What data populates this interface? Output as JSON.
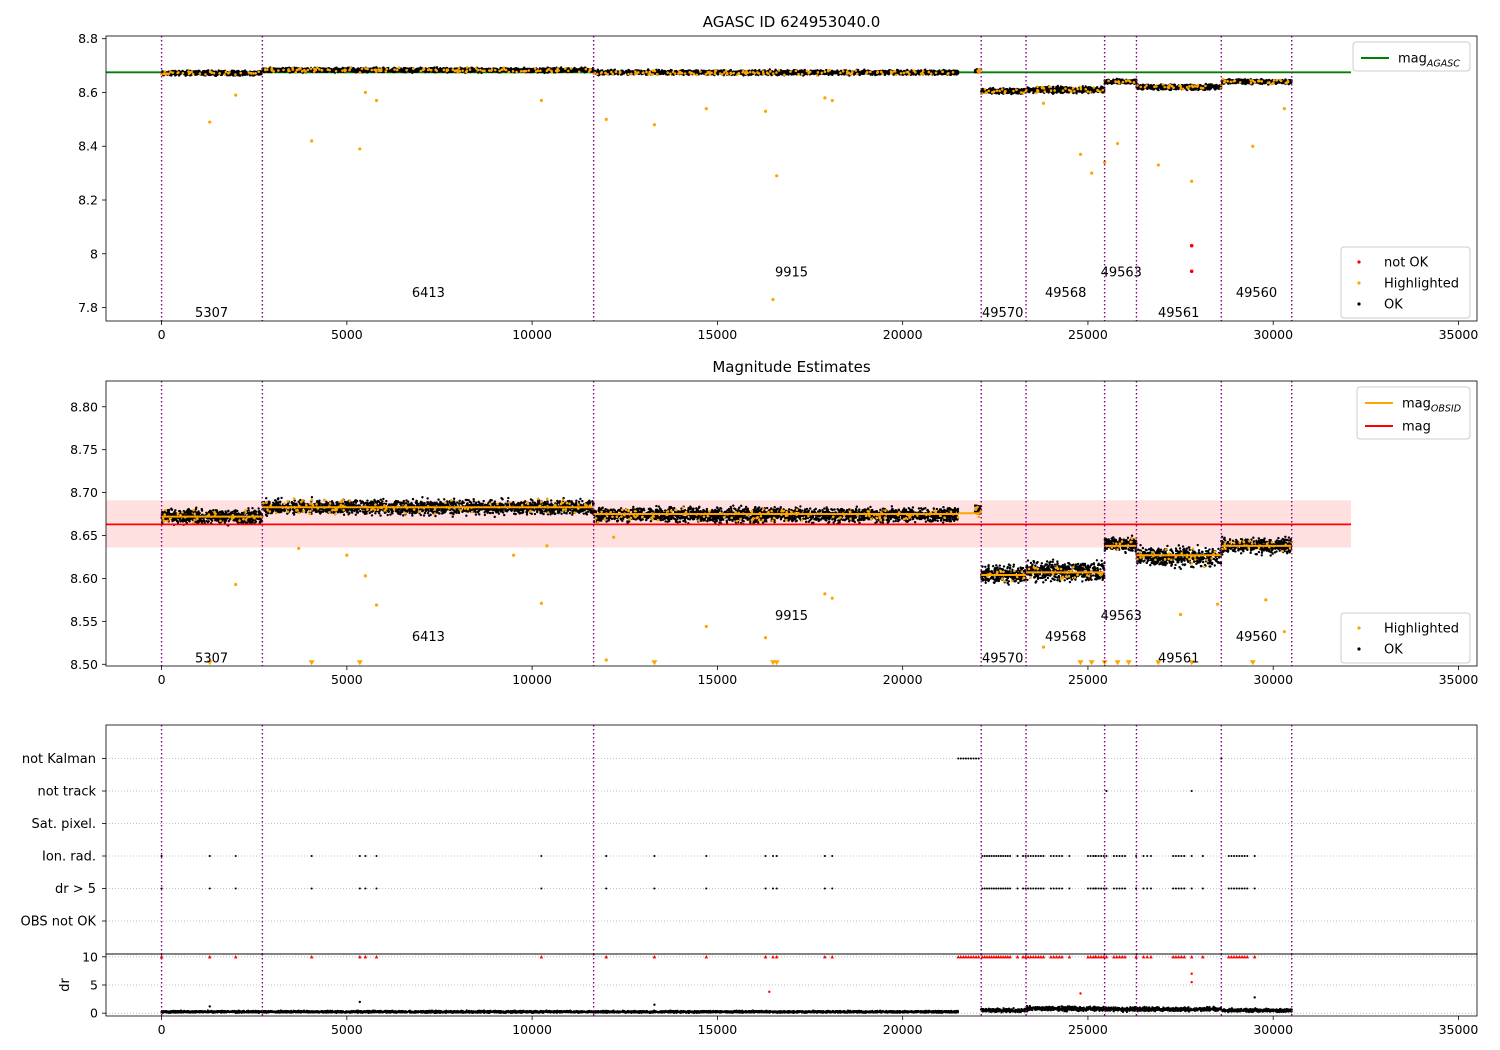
{
  "chart_data": [
    {
      "type": "scatter",
      "title": "AGASC ID 624953040.0",
      "xlim": [
        -1500,
        35500
      ],
      "ylim": [
        7.75,
        8.81
      ],
      "xticks": [
        0,
        5000,
        10000,
        15000,
        20000,
        25000,
        30000,
        35000
      ],
      "yticks": [
        7.8,
        8.0,
        8.2,
        8.4,
        8.6,
        8.8
      ],
      "grid": false,
      "obs_boundaries": [
        0,
        2720,
        11660,
        22120,
        23330,
        25450,
        26310,
        28600,
        30500
      ],
      "obsids": [
        {
          "label": "5307",
          "x": 1350,
          "y": 7.78
        },
        {
          "label": "6413",
          "x": 7200,
          "y": 7.855
        },
        {
          "label": "9915",
          "x": 17000,
          "y": 7.93
        },
        {
          "label": "49570",
          "x": 22700,
          "y": 7.78
        },
        {
          "label": "49568",
          "x": 24400,
          "y": 7.855
        },
        {
          "label": "49563",
          "x": 25900,
          "y": 7.93
        },
        {
          "label": "49561",
          "x": 27450,
          "y": 7.78
        },
        {
          "label": "49560",
          "x": 29550,
          "y": 7.855
        }
      ],
      "series": [
        {
          "name": "not OK",
          "color": "#ff0000",
          "points": [
            [
              27800,
              8.03
            ],
            [
              27800,
              7.935
            ]
          ]
        },
        {
          "name": "Highlighted",
          "color": "#ffa500",
          "points": [
            [
              1300,
              8.49
            ],
            [
              2000,
              8.59
            ],
            [
              4050,
              8.42
            ],
            [
              5350,
              8.39
            ],
            [
              5500,
              8.6
            ],
            [
              5800,
              8.57
            ],
            [
              10250,
              8.57
            ],
            [
              12000,
              8.5
            ],
            [
              13300,
              8.48
            ],
            [
              14700,
              8.54
            ],
            [
              16300,
              8.53
            ],
            [
              16500,
              7.83
            ],
            [
              16600,
              8.29
            ],
            [
              17900,
              8.58
            ],
            [
              18100,
              8.57
            ],
            [
              23800,
              8.56
            ],
            [
              24800,
              8.37
            ],
            [
              25100,
              8.3
            ],
            [
              25450,
              8.34
            ],
            [
              25800,
              8.41
            ],
            [
              26900,
              8.33
            ],
            [
              27800,
              8.27
            ],
            [
              29450,
              8.4
            ],
            [
              30300,
              8.54
            ]
          ]
        },
        {
          "name": "OK",
          "color": "#000000",
          "segments": [
            {
              "x0": 0,
              "x1": 2720,
              "y": 8.672,
              "spread": 0.012
            },
            {
              "x0": 2720,
              "x1": 11660,
              "y": 8.683,
              "spread": 0.012
            },
            {
              "x0": 11660,
              "x1": 21500,
              "y": 8.674,
              "spread": 0.012
            },
            {
              "x0": 21950,
              "x1": 22120,
              "y": 8.68,
              "spread": 0.01
            },
            {
              "x0": 22120,
              "x1": 23330,
              "y": 8.605,
              "spread": 0.014
            },
            {
              "x0": 23330,
              "x1": 25450,
              "y": 8.61,
              "spread": 0.016
            },
            {
              "x0": 25450,
              "x1": 26310,
              "y": 8.64,
              "spread": 0.012
            },
            {
              "x0": 26310,
              "x1": 28600,
              "y": 8.62,
              "spread": 0.014
            },
            {
              "x0": 28600,
              "x1": 30500,
              "y": 8.64,
              "spread": 0.012
            }
          ]
        },
        {
          "name": "mag_AGASC",
          "color": "#008000",
          "line": {
            "x": [
              -1500,
              32100
            ],
            "y": 8.675
          }
        }
      ],
      "legend_lines": [
        {
          "label": "mag",
          "sub": "AGASC",
          "color": "#008000"
        }
      ],
      "legend_markers": [
        {
          "label": "not OK",
          "color": "#ff0000"
        },
        {
          "label": "Highlighted",
          "color": "#ffa500"
        },
        {
          "label": "OK",
          "color": "#000000"
        }
      ]
    },
    {
      "type": "scatter",
      "title": "Magnitude Estimates",
      "xlim": [
        -1500,
        35500
      ],
      "ylim": [
        8.498,
        8.83
      ],
      "xticks": [
        0,
        5000,
        10000,
        15000,
        20000,
        25000,
        30000,
        35000
      ],
      "yticks": [
        8.5,
        8.55,
        8.6,
        8.65,
        8.7,
        8.75,
        8.8
      ],
      "ytick_labels": [
        "8.50",
        "8.55",
        "8.60",
        "8.65",
        "8.70",
        "8.75",
        "8.80"
      ],
      "grid": false,
      "obs_boundaries": [
        0,
        2720,
        11660,
        22120,
        23330,
        25450,
        26310,
        28600,
        30500
      ],
      "obsids": [
        {
          "label": "5307",
          "x": 1350,
          "y": 8.507
        },
        {
          "label": "6413",
          "x": 7200,
          "y": 8.532
        },
        {
          "label": "9915",
          "x": 17000,
          "y": 8.556
        },
        {
          "label": "49570",
          "x": 22700,
          "y": 8.507
        },
        {
          "label": "49568",
          "x": 24400,
          "y": 8.532
        },
        {
          "label": "49563",
          "x": 25900,
          "y": 8.556
        },
        {
          "label": "49561",
          "x": 27450,
          "y": 8.507
        },
        {
          "label": "49560",
          "x": 29550,
          "y": 8.532
        }
      ],
      "mag": 8.663,
      "mag_band": [
        8.636,
        8.691
      ],
      "mag_xrange": [
        -1500,
        32100
      ],
      "obs_mags": [
        {
          "x0": 0,
          "x1": 2720,
          "y": 8.672
        },
        {
          "x0": 2720,
          "x1": 11660,
          "y": 8.683
        },
        {
          "x0": 11660,
          "x1": 21500,
          "y": 8.675
        },
        {
          "x0": 21500,
          "x1": 22120,
          "y": 8.676
        },
        {
          "x0": 22120,
          "x1": 23330,
          "y": 8.604
        },
        {
          "x0": 23330,
          "x1": 25450,
          "y": 8.607
        },
        {
          "x0": 25450,
          "x1": 26310,
          "y": 8.638
        },
        {
          "x0": 26310,
          "x1": 28600,
          "y": 8.627
        },
        {
          "x0": 28600,
          "x1": 30500,
          "y": 8.638
        }
      ],
      "ok_segments": [
        {
          "x0": 0,
          "x1": 2720,
          "y": 8.672,
          "spread": 0.012
        },
        {
          "x0": 2720,
          "x1": 11660,
          "y": 8.683,
          "spread": 0.012
        },
        {
          "x0": 11660,
          "x1": 21500,
          "y": 8.674,
          "spread": 0.012
        },
        {
          "x0": 21950,
          "x1": 22120,
          "y": 8.68,
          "spread": 0.01
        },
        {
          "x0": 22120,
          "x1": 23330,
          "y": 8.605,
          "spread": 0.014
        },
        {
          "x0": 23330,
          "x1": 25450,
          "y": 8.608,
          "spread": 0.016
        },
        {
          "x0": 25450,
          "x1": 26310,
          "y": 8.64,
          "spread": 0.012
        },
        {
          "x0": 26310,
          "x1": 28600,
          "y": 8.625,
          "spread": 0.016
        },
        {
          "x0": 28600,
          "x1": 30500,
          "y": 8.638,
          "spread": 0.012
        }
      ],
      "highlighted": [
        [
          1300,
          8.5
        ],
        [
          2000,
          8.593
        ],
        [
          3700,
          8.635
        ],
        [
          4050,
          8.5
        ],
        [
          5000,
          8.627
        ],
        [
          5350,
          8.5
        ],
        [
          5500,
          8.603
        ],
        [
          5800,
          8.569
        ],
        [
          9500,
          8.627
        ],
        [
          10250,
          8.571
        ],
        [
          10400,
          8.638
        ],
        [
          12000,
          8.505
        ],
        [
          12200,
          8.648
        ],
        [
          13300,
          8.5
        ],
        [
          14700,
          8.544
        ],
        [
          16300,
          8.531
        ],
        [
          16500,
          8.5
        ],
        [
          16600,
          8.5
        ],
        [
          17900,
          8.582
        ],
        [
          18100,
          8.577
        ],
        [
          23800,
          8.52
        ],
        [
          24800,
          8.5
        ],
        [
          25100,
          8.5
        ],
        [
          25450,
          8.5
        ],
        [
          25800,
          8.5
        ],
        [
          26100,
          8.5
        ],
        [
          26900,
          8.5
        ],
        [
          27500,
          8.558
        ],
        [
          27800,
          8.5
        ],
        [
          29450,
          8.5
        ],
        [
          30300,
          8.538
        ],
        [
          29800,
          8.575
        ],
        [
          28500,
          8.57
        ]
      ],
      "legend_lines": [
        {
          "label": "mag",
          "sub": "OBSID",
          "color": "#ffa500"
        },
        {
          "label": "mag",
          "sub": "",
          "color": "#ff0000"
        }
      ],
      "legend_markers": [
        {
          "label": "Highlighted",
          "color": "#ffa500"
        },
        {
          "label": "OK",
          "color": "#000000"
        }
      ]
    },
    {
      "type": "scatter",
      "title": "",
      "xlim": [
        -1500,
        35500
      ],
      "flag_categories": [
        "not Kalman",
        "not track",
        "Sat. pixel.",
        "Ion. rad.",
        "dr > 5",
        "OBS not OK"
      ],
      "flag_points": {
        "not Kalman": {
          "ranges": [
            [
              21500,
              22050
            ]
          ],
          "x": [
            28600
          ]
        },
        "not track": {
          "ranges": [],
          "x": [
            25500,
            27800
          ]
        },
        "Sat. pixel.": {
          "ranges": [],
          "x": []
        },
        "Ion. rad.": {
          "ranges": [
            [
              22150,
              22900
            ],
            [
              23250,
              23800
            ],
            [
              24000,
              24300
            ],
            [
              25000,
              25500
            ],
            [
              25700,
              26000
            ],
            [
              26500,
              26700
            ],
            [
              27300,
              27600
            ],
            [
              28800,
              29300
            ]
          ],
          "x": [
            0,
            1300,
            2000,
            4050,
            5350,
            5500,
            5800,
            10250,
            12000,
            13300,
            14700,
            16300,
            16500,
            16600,
            17900,
            18100,
            23100,
            24500,
            25200,
            26300,
            27800,
            28100,
            29500
          ]
        },
        "dr > 5": {
          "ranges": [
            [
              22150,
              22900
            ],
            [
              23250,
              23800
            ],
            [
              24000,
              24300
            ],
            [
              25000,
              25500
            ],
            [
              25700,
              26000
            ],
            [
              26500,
              26700
            ],
            [
              27300,
              27600
            ],
            [
              28800,
              29300
            ]
          ],
          "x": [
            0,
            1300,
            2000,
            4050,
            5350,
            5500,
            5800,
            10250,
            12000,
            13300,
            14700,
            16300,
            16500,
            16600,
            17900,
            18100,
            23100,
            24500,
            25200,
            26300,
            27800,
            28100,
            29500
          ]
        },
        "OBS not OK": {
          "ranges": [],
          "x": []
        }
      },
      "obs_boundaries": [
        0,
        2720,
        11660,
        22120,
        23330,
        25450,
        26310,
        28600,
        30500
      ],
      "grid": "horizontal"
    },
    {
      "type": "scatter",
      "title": "",
      "ylabel": "dr",
      "xlim": [
        -1500,
        35500
      ],
      "ylim": [
        -0.5,
        10.5
      ],
      "xticks": [
        0,
        5000,
        10000,
        15000,
        20000,
        25000,
        30000,
        35000
      ],
      "yticks": [
        0,
        5,
        10
      ],
      "grid": "horizontal",
      "obs_boundaries": [
        0,
        2720,
        11660,
        22120,
        23330,
        25450,
        26310,
        28600,
        30500
      ],
      "clipped_points": {
        "color": "#ff0000",
        "ranges": [
          [
            21500,
            22050
          ],
          [
            22150,
            22900
          ],
          [
            23250,
            23800
          ],
          [
            24000,
            24300
          ],
          [
            25000,
            25500
          ],
          [
            25700,
            26000
          ],
          [
            26500,
            26700
          ],
          [
            27300,
            27600
          ],
          [
            28800,
            29300
          ]
        ],
        "x": [
          0,
          1300,
          2000,
          4050,
          5350,
          5500,
          5800,
          10250,
          12000,
          13300,
          14700,
          16300,
          16500,
          16600,
          17900,
          18100,
          23100,
          24500,
          25200,
          26300,
          27800,
          28100,
          29500
        ],
        "y": 10
      },
      "red_points": [
        [
          16400,
          3.8
        ],
        [
          24800,
          3.5
        ],
        [
          27800,
          7
        ],
        [
          27800,
          5.5
        ]
      ],
      "ok_segments": [
        {
          "x0": 0,
          "x1": 21500,
          "y": 0.25,
          "spread": 0.25
        },
        {
          "x0": 22120,
          "x1": 23330,
          "y": 0.5,
          "spread": 0.45
        },
        {
          "x0": 23330,
          "x1": 25450,
          "y": 0.8,
          "spread": 0.55
        },
        {
          "x0": 25450,
          "x1": 26310,
          "y": 0.7,
          "spread": 0.5
        },
        {
          "x0": 26310,
          "x1": 28600,
          "y": 0.7,
          "spread": 0.5
        },
        {
          "x0": 28600,
          "x1": 30500,
          "y": 0.5,
          "spread": 0.4
        }
      ],
      "ok_points": [
        [
          5350,
          2.0
        ],
        [
          13300,
          1.5
        ],
        [
          29500,
          2.8
        ],
        [
          1300,
          1.2
        ]
      ]
    }
  ]
}
